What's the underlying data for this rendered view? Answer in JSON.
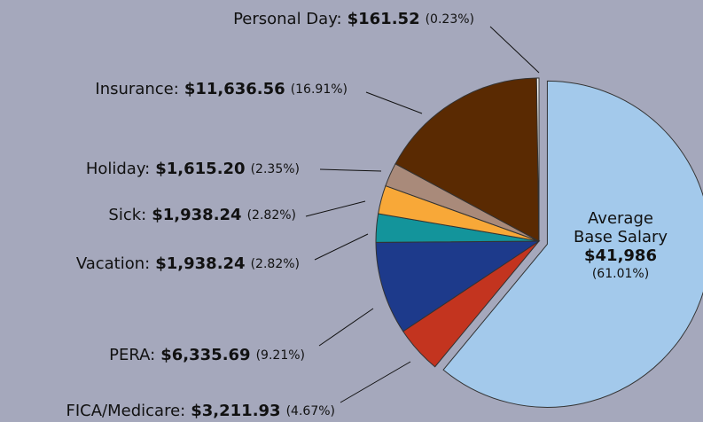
{
  "chart_data": {
    "type": "pie",
    "categories": [
      "Average Base Salary",
      "FICA/Medicare:",
      "PERA:",
      "Vacation:",
      "Sick:",
      "Holiday:",
      "Insurance:",
      "Personal Day:"
    ],
    "values": [
      41986,
      3211.93,
      6335.69,
      1938.24,
      1938.24,
      1615.2,
      11636.56,
      161.52
    ],
    "value_labels": [
      "$41,986",
      "$3,211.93",
      "$6,335.69",
      "$1,938.24",
      "$1,938.24",
      "$1,615.20",
      "$11,636.56",
      "$161.52"
    ],
    "percentages": [
      61.01,
      4.67,
      9.21,
      2.82,
      2.82,
      2.35,
      16.91,
      0.23
    ],
    "percentage_labels": [
      "(61.01%)",
      "(4.67%)",
      "(9.21%)",
      "(2.82%)",
      "(2.82%)",
      "(2.35%)",
      "(16.91%)",
      "(0.23%)"
    ],
    "colors": [
      "#a3c9eb",
      "#c3341f",
      "#1d3a8b",
      "#13949b",
      "#f8a838",
      "#a98a7a",
      "#5a2a02",
      "#f2f2f2"
    ]
  }
}
